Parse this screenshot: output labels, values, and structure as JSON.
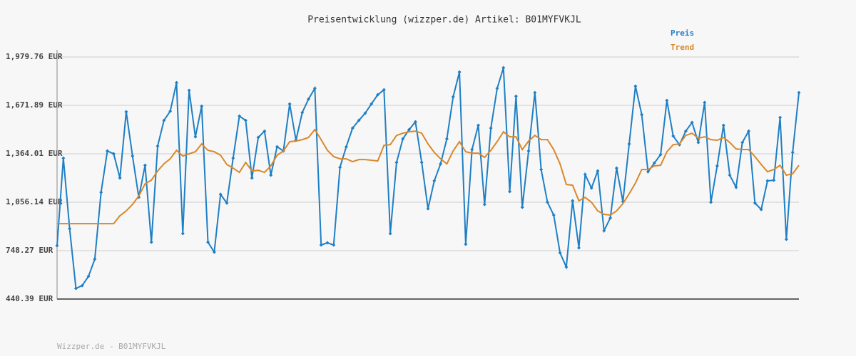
{
  "chart_data": {
    "type": "line",
    "title": "Preisentwicklung (wizzper.de) Artikel: B01MYFVKJL",
    "footer": "Wizzper.de - B01MYFVKJL",
    "ylim": [
      440.39,
      1979.76
    ],
    "yticks": [
      {
        "value": 440.39,
        "label": "440.39 EUR"
      },
      {
        "value": 748.27,
        "label": "748.27 EUR"
      },
      {
        "value": 1056.14,
        "label": "1,056.14 EUR"
      },
      {
        "value": 1364.01,
        "label": "1,364.01 EUR"
      },
      {
        "value": 1671.89,
        "label": "1,671.89 EUR"
      },
      {
        "value": 1979.76,
        "label": "1,979.76 EUR"
      }
    ],
    "grid": true,
    "legend": "top-right",
    "series": [
      {
        "name": "Preis",
        "color": "#1f7fc4",
        "markers": true,
        "values": [
          780,
          1336,
          888,
          508,
          526,
          585,
          694,
          1119,
          1382,
          1364,
          1210,
          1631,
          1350,
          1087,
          1291,
          802,
          1413,
          1576,
          1635,
          1816,
          857,
          1767,
          1472,
          1667,
          802,
          739,
          1106,
          1051,
          1336,
          1604,
          1576,
          1210,
          1468,
          1508,
          1228,
          1409,
          1382,
          1681,
          1450,
          1626,
          1712,
          1780,
          784,
          798,
          784,
          1278,
          1409,
          1527,
          1576,
          1622,
          1681,
          1739,
          1771,
          857,
          1309,
          1459,
          1518,
          1567,
          1309,
          1015,
          1192,
          1300,
          1459,
          1726,
          1884,
          789,
          1391,
          1545,
          1042,
          1527,
          1780,
          1911,
          1124,
          1730,
          1024,
          1382,
          1753,
          1264,
          1056,
          974,
          734,
          644,
          1065,
          766,
          1232,
          1146,
          1255,
          875,
          956,
          1273,
          1060,
          1427,
          1794,
          1613,
          1250,
          1305,
          1359,
          1703,
          1477,
          1422,
          1508,
          1563,
          1436,
          1690,
          1056,
          1287,
          1545,
          1228,
          1151,
          1436,
          1508,
          1051,
          1010,
          1192,
          1196,
          1595,
          820,
          1373,
          1753
        ]
      },
      {
        "name": "Trend",
        "color": "#d9882a",
        "markers": false,
        "values": [
          920,
          920,
          920,
          920,
          920,
          920,
          920,
          920,
          920,
          920,
          970,
          1001,
          1042,
          1096,
          1173,
          1196,
          1255,
          1300,
          1332,
          1386,
          1350,
          1364,
          1377,
          1427,
          1386,
          1377,
          1355,
          1296,
          1273,
          1246,
          1309,
          1255,
          1259,
          1246,
          1287,
          1355,
          1382,
          1441,
          1445,
          1454,
          1468,
          1518,
          1454,
          1386,
          1346,
          1332,
          1332,
          1314,
          1327,
          1327,
          1323,
          1318,
          1418,
          1422,
          1481,
          1495,
          1504,
          1508,
          1495,
          1427,
          1373,
          1332,
          1300,
          1382,
          1441,
          1377,
          1368,
          1368,
          1341,
          1386,
          1441,
          1504,
          1472,
          1472,
          1391,
          1445,
          1481,
          1454,
          1454,
          1391,
          1300,
          1169,
          1164,
          1065,
          1087,
          1056,
          1001,
          979,
          974,
          1001,
          1047,
          1110,
          1178,
          1264,
          1264,
          1287,
          1291,
          1377,
          1422,
          1427,
          1481,
          1495,
          1463,
          1472,
          1454,
          1450,
          1468,
          1436,
          1395,
          1391,
          1391,
          1346,
          1296,
          1250,
          1264,
          1291,
          1228,
          1237,
          1291
        ]
      }
    ]
  }
}
